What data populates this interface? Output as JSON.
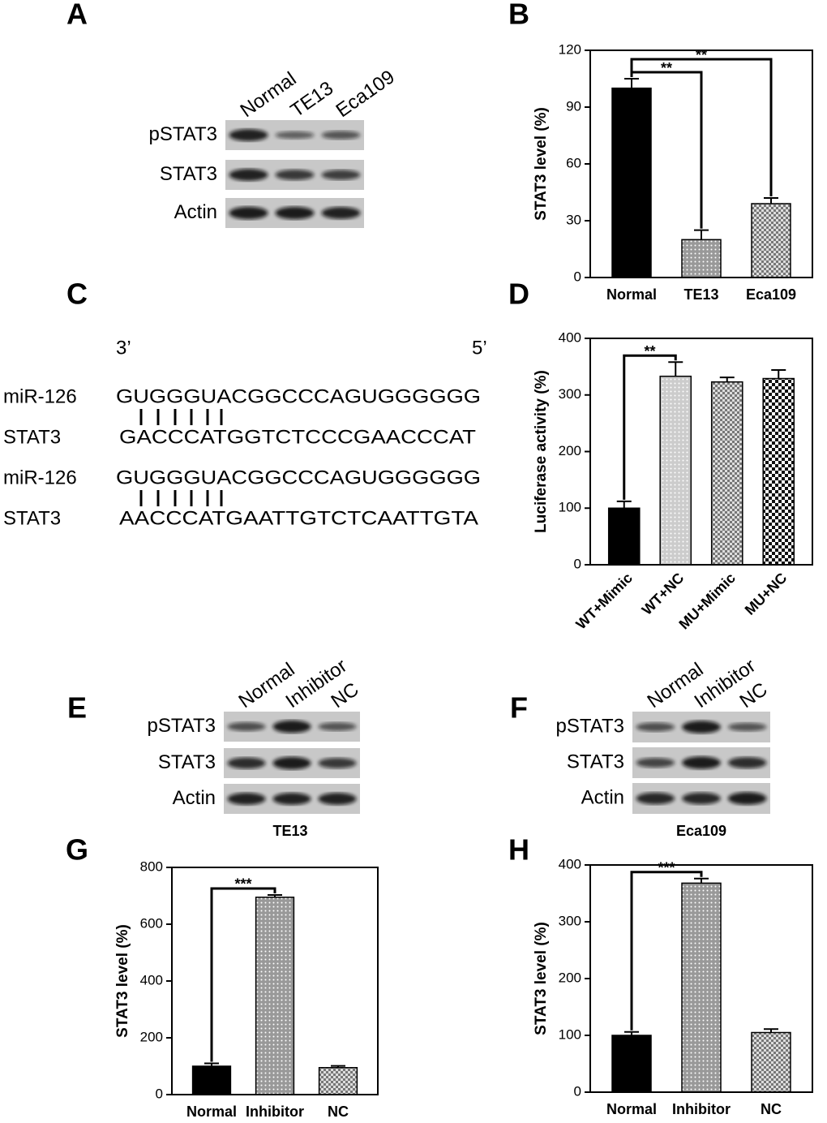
{
  "figure": {
    "blots": [
      {
        "panel": "A",
        "lanes": [
          "Normal",
          "TE13",
          "Eca109"
        ],
        "rows": [
          "pSTAT3",
          "STAT3",
          "Actin"
        ]
      },
      {
        "panel": "E",
        "lanes": [
          "Normal",
          "Inhibitor",
          "NC"
        ],
        "rows": [
          "pSTAT3",
          "STAT3",
          "Actin"
        ],
        "cell_line": "TE13"
      },
      {
        "panel": "F",
        "lanes": [
          "Normal",
          "Inhibitor",
          "NC"
        ],
        "rows": [
          "pSTAT3",
          "STAT3",
          "Actin"
        ],
        "cell_line": "Eca109"
      }
    ],
    "alignment": {
      "panel": "C",
      "end_left": "3’",
      "end_right": "5’",
      "rows": [
        {
          "name": "miR-126",
          "sequence": "GUGGGUACGGCCCAGUGGGGGG"
        },
        {
          "name": "STAT3",
          "sequence": "GACCCATGGTCTCCCGAACCCAT"
        },
        {
          "name": "miR-126",
          "sequence": "GUGGGUACGGCCCAGUGGGGGG"
        },
        {
          "name": "STAT3",
          "sequence": "AACCCATGAATTGTCTCAATTGTA"
        }
      ]
    }
  },
  "chart_data": [
    {
      "panel": "B",
      "type": "bar",
      "y_label": "STAT3 level (%)",
      "categories": [
        "Normal",
        "TE13",
        "Eca109"
      ],
      "values": [
        100,
        20,
        39
      ],
      "errors": [
        5,
        5,
        3
      ],
      "patterns": [
        "solid",
        "dots",
        "checks"
      ],
      "ylim": [
        0,
        120
      ],
      "yticks": [
        0,
        30,
        60,
        90,
        120
      ],
      "comparisons": [
        {
          "between": [
            0,
            1
          ],
          "label": "**"
        },
        {
          "between": [
            0,
            2
          ],
          "label": "**"
        }
      ]
    },
    {
      "panel": "D",
      "type": "bar",
      "y_label": "Luciferase activity (%)",
      "categories": [
        "WT+Mimic",
        "WT+NC",
        "MU+Mimic",
        "MU+NC"
      ],
      "values": [
        100,
        333,
        323,
        329
      ],
      "errors": [
        12,
        25,
        8,
        15
      ],
      "patterns": [
        "solid",
        "dots-light",
        "checks",
        "checks-bold"
      ],
      "ylim": [
        0,
        400
      ],
      "yticks": [
        0,
        100,
        200,
        300,
        400
      ],
      "comparisons": [
        {
          "between": [
            0,
            1
          ],
          "label": "**"
        }
      ]
    },
    {
      "panel": "G",
      "type": "bar",
      "y_label": "STAT3 level (%)",
      "categories": [
        "Normal",
        "Inhibitor",
        "NC"
      ],
      "values": [
        100,
        695,
        95
      ],
      "errors": [
        10,
        8,
        6
      ],
      "patterns": [
        "solid",
        "dots",
        "checks"
      ],
      "ylim": [
        0,
        800
      ],
      "yticks": [
        0,
        200,
        400,
        600,
        800
      ],
      "comparisons": [
        {
          "between": [
            0,
            1
          ],
          "label": "***"
        }
      ]
    },
    {
      "panel": "H",
      "type": "bar",
      "y_label": "STAT3 level (%)",
      "categories": [
        "Normal",
        "Inhibitor",
        "NC"
      ],
      "values": [
        100,
        368,
        105
      ],
      "errors": [
        6,
        8,
        6
      ],
      "patterns": [
        "solid",
        "dots",
        "checks"
      ],
      "ylim": [
        0,
        400
      ],
      "yticks": [
        0,
        100,
        200,
        300,
        400
      ],
      "comparisons": [
        {
          "between": [
            0,
            1
          ],
          "label": "***"
        }
      ]
    }
  ]
}
